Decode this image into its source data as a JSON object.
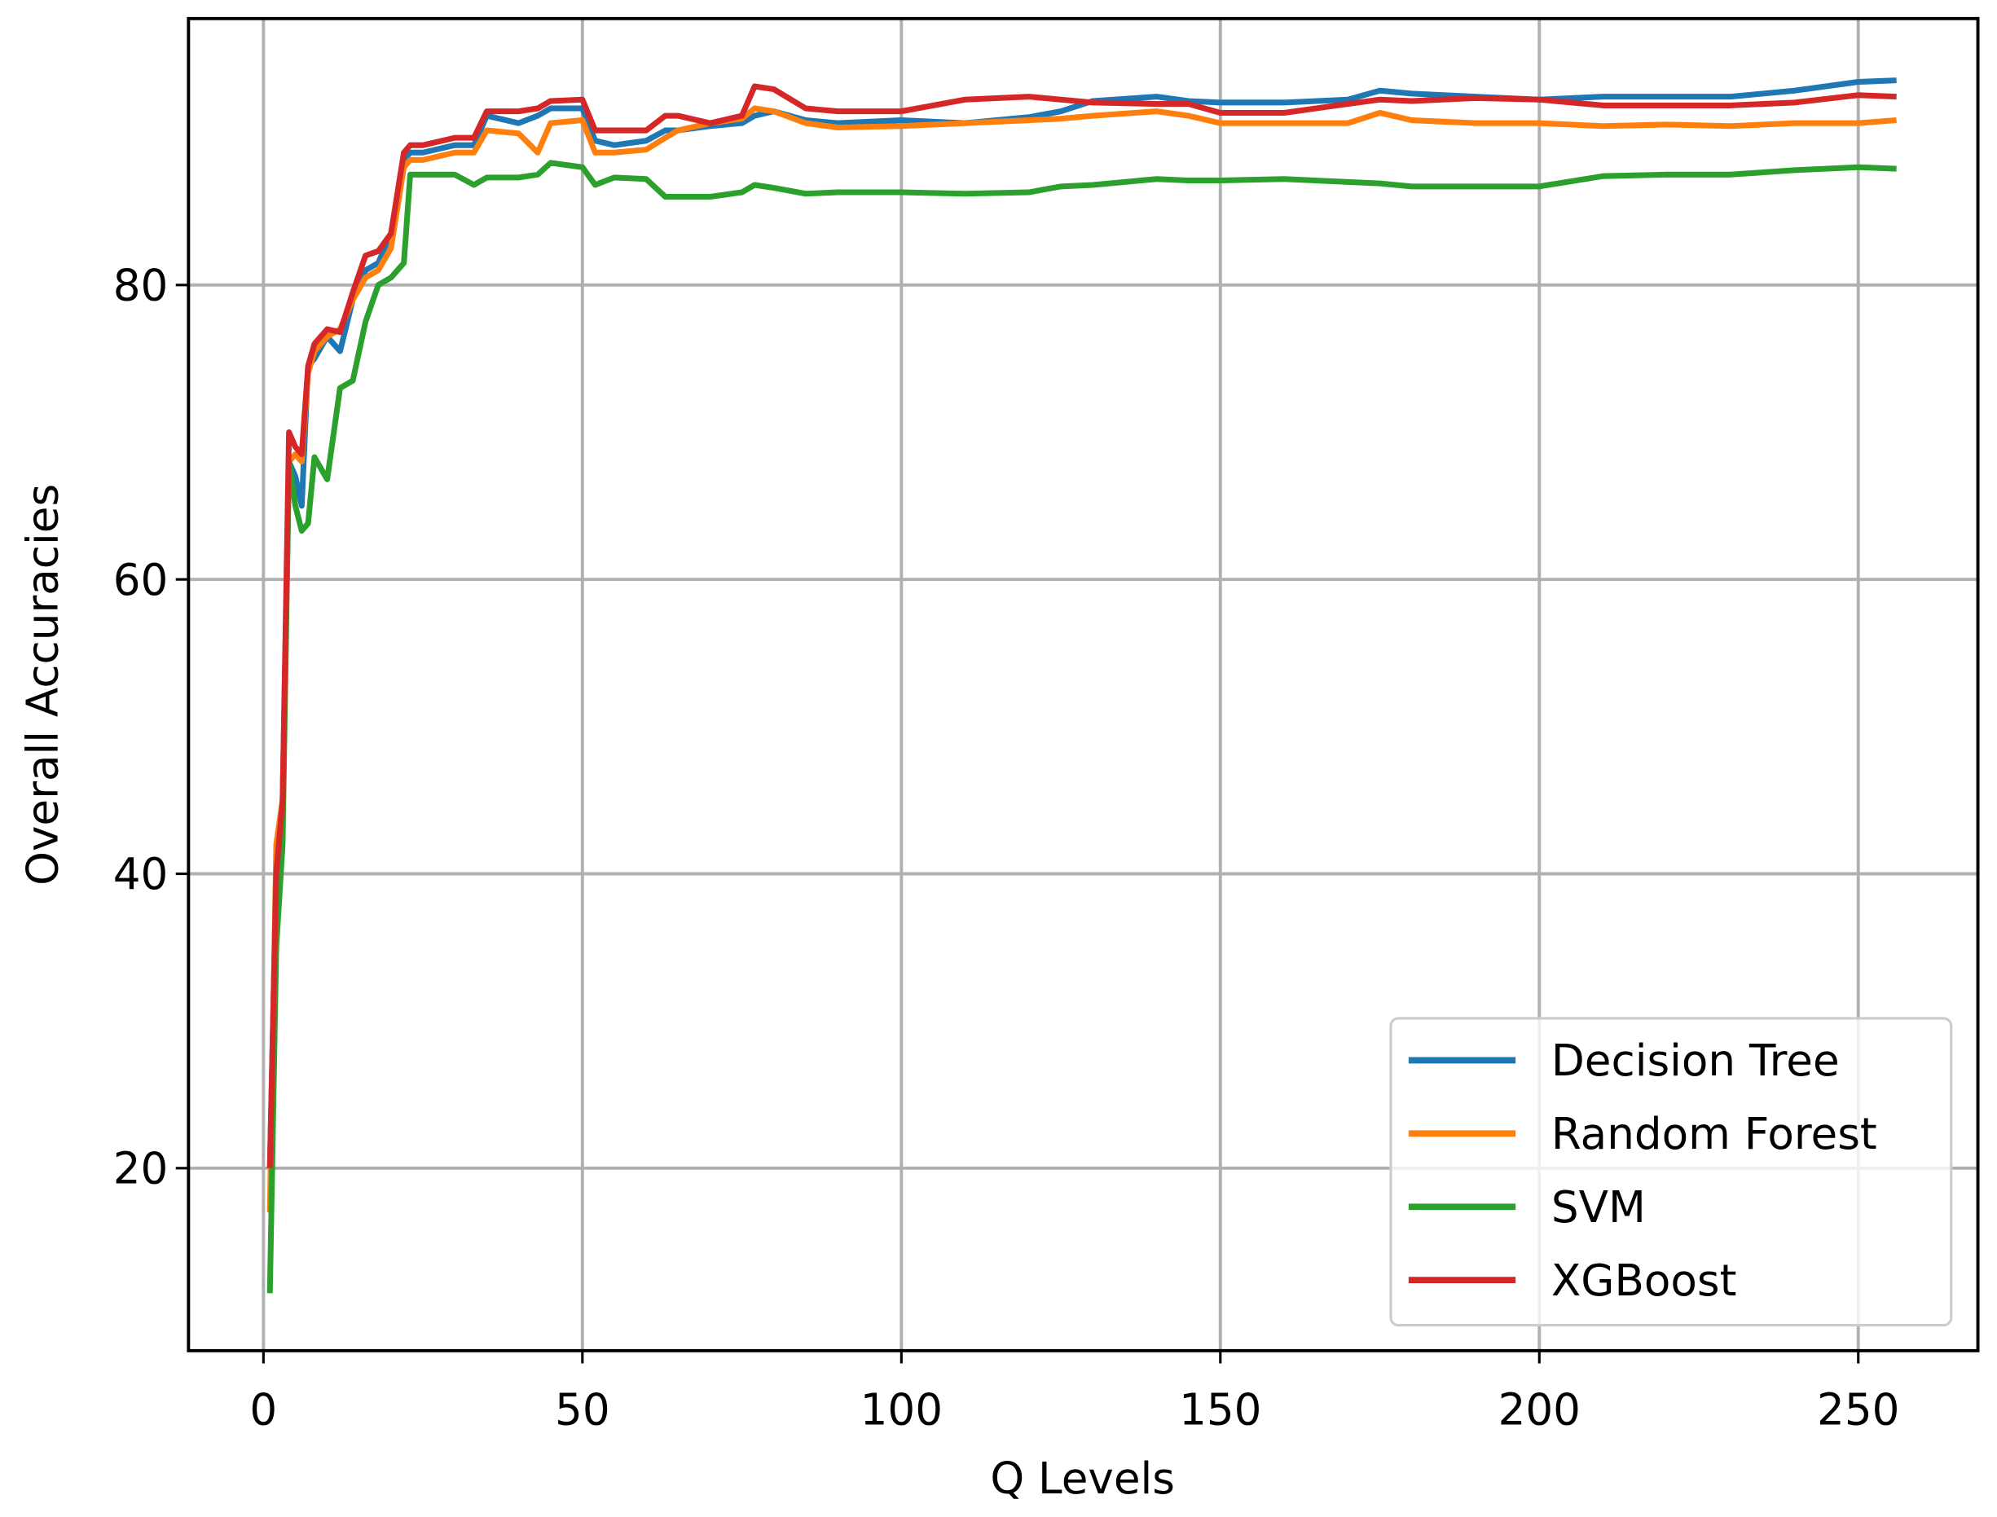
{
  "chart_data": {
    "type": "line",
    "xlabel": "Q Levels",
    "ylabel": "Overall Accuracies",
    "x": [
      1,
      2,
      3,
      4,
      5,
      6,
      7,
      8,
      10,
      12,
      14,
      16,
      18,
      20,
      22,
      23,
      25,
      30,
      33,
      35,
      40,
      43,
      45,
      50,
      52,
      55,
      60,
      63,
      65,
      70,
      75,
      77,
      80,
      85,
      90,
      100,
      110,
      120,
      125,
      130,
      140,
      145,
      150,
      160,
      170,
      175,
      180,
      190,
      200,
      210,
      220,
      230,
      240,
      250,
      256
    ],
    "series": [
      {
        "name": "Decision Tree",
        "color": "#1f77b4",
        "values": [
          20,
          40,
          45,
          68,
          67,
          65,
          74.5,
          75,
          76.5,
          75.5,
          79,
          81,
          81.5,
          83.5,
          88.5,
          89,
          89,
          89.5,
          89.5,
          91.5,
          91,
          91.5,
          92,
          92,
          89.8,
          89.5,
          89.8,
          90.5,
          90.5,
          90.8,
          91,
          91.5,
          91.8,
          91.2,
          91,
          91.2,
          91,
          91.4,
          91.8,
          92.5,
          92.8,
          92.5,
          92.4,
          92.4,
          92.6,
          93.2,
          93,
          92.8,
          92.6,
          92.8,
          92.8,
          92.8,
          93.2,
          93.8,
          93.9
        ]
      },
      {
        "name": "Random Forest",
        "color": "#ff7f0e",
        "values": [
          17,
          42,
          45,
          68,
          68.5,
          68,
          74,
          75.5,
          76.5,
          77,
          79,
          80.5,
          81,
          82.5,
          88,
          88.5,
          88.5,
          89,
          89,
          90.5,
          90.3,
          89,
          91,
          91.2,
          89,
          89,
          89.2,
          90,
          90.5,
          91,
          91.3,
          92,
          91.8,
          91,
          90.7,
          90.8,
          91,
          91.2,
          91.3,
          91.5,
          91.8,
          91.5,
          91,
          91,
          91,
          91.7,
          91.2,
          91,
          91,
          90.8,
          90.9,
          90.8,
          91,
          91,
          91.2
        ]
      },
      {
        "name": "SVM",
        "color": "#2ca02c",
        "values": [
          11.5,
          35,
          42,
          68,
          65,
          63.3,
          63.8,
          68.3,
          66.8,
          73,
          73.5,
          77.5,
          80,
          80.5,
          81.5,
          87.5,
          87.5,
          87.5,
          86.8,
          87.3,
          87.3,
          87.5,
          88.3,
          88,
          86.8,
          87.3,
          87.2,
          86,
          86,
          86,
          86.3,
          86.8,
          86.6,
          86.2,
          86.3,
          86.3,
          86.2,
          86.3,
          86.7,
          86.8,
          87.2,
          87.1,
          87.1,
          87.2,
          87,
          86.9,
          86.7,
          86.7,
          86.7,
          87.4,
          87.5,
          87.5,
          87.8,
          88,
          87.9
        ]
      },
      {
        "name": "XGBoost",
        "color": "#d62728",
        "values": [
          20,
          40,
          45,
          70,
          69,
          68.5,
          74.5,
          76,
          77,
          76.8,
          79.5,
          82,
          82.3,
          83.5,
          89,
          89.5,
          89.5,
          90,
          90,
          91.8,
          91.8,
          92,
          92.5,
          92.6,
          90.5,
          90.5,
          90.5,
          91.5,
          91.5,
          91,
          91.5,
          93.5,
          93.3,
          92,
          91.8,
          91.8,
          92.6,
          92.8,
          92.6,
          92.4,
          92.3,
          92.3,
          91.7,
          91.7,
          92.3,
          92.6,
          92.5,
          92.7,
          92.6,
          92.2,
          92.2,
          92.2,
          92.4,
          92.9,
          92.8
        ]
      }
    ],
    "xlim": [
      -11.75,
      268.75
    ],
    "ylim": [
      7.6,
      98.1
    ],
    "xticks": [
      0,
      50,
      100,
      150,
      200,
      250
    ],
    "yticks": [
      20,
      40,
      60,
      80
    ],
    "grid": true,
    "legend": "lower right"
  }
}
